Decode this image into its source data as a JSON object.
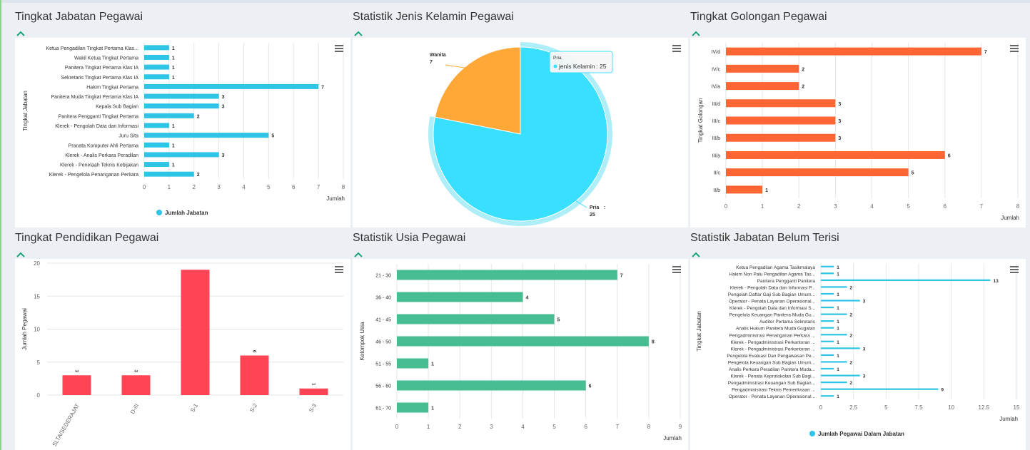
{
  "panels": {
    "p1": {
      "title": "Tingkat Jabatan Pegawai"
    },
    "p2": {
      "title": "Statistik Jenis Kelamin Pegawai"
    },
    "p3": {
      "title": "Tingkat Golongan Pegawai"
    },
    "p4": {
      "title": "Tingkat Pendidikan Pegawai"
    },
    "p5": {
      "title": "Statistik Usia Pegawai"
    },
    "p6": {
      "title": "Statistik Jabatan Belum Terisi"
    }
  },
  "colors": {
    "cyan": "#2ec4e6",
    "orange": "#ff6633",
    "red": "#ff4455",
    "green": "#47bd91",
    "pie_orange": "#ffa737",
    "pie_cyan": "#38dfff"
  },
  "chart_data": [
    {
      "id": "jabatan",
      "type": "bar",
      "orientation": "horizontal",
      "categories": [
        "Ketua Pengadilan Tingkat Pertama Klas...",
        "Wakil Ketua Tingkat Pertama",
        "Panitera Tingkat Pertama Klas IA",
        "Sekretaris Tingkat Pertama Klas IA",
        "Hakim Tingkat Pertama",
        "Panitera Muda Tingkat Pertama Klas IA",
        "Kepala Sub Bagian",
        "Panitera Pengganti Tingkat Pertama",
        "Klerek - Pengolah Data dan Informasi",
        "Juru Sita",
        "Pranata Komputer Ahli Pertama",
        "Klerek - Analis Perkara Peradilan",
        "Klerek - Penelaah Teknis Kebijakan",
        "Klerek - Pengelola Penanganan Perkara"
      ],
      "values": [
        1,
        1,
        1,
        1,
        7,
        3,
        3,
        2,
        1,
        5,
        1,
        3,
        1,
        2
      ],
      "xlabel": "Jumlah",
      "ylabel": "Tingkat Jabatan",
      "xlim": [
        0,
        8
      ],
      "ticks": [
        "0",
        "1",
        "2",
        "3",
        "4",
        "5",
        "6",
        "7",
        "8"
      ],
      "legend": "Jumlah Jabatan"
    },
    {
      "id": "kelamin",
      "type": "pie",
      "slices": [
        {
          "label": "Wanita",
          "value": 7
        },
        {
          "label": "Pria",
          "value": 25
        }
      ],
      "tooltip": {
        "title": "Pria",
        "series": "jenis Kelamin",
        "value": "25"
      }
    },
    {
      "id": "golongan",
      "type": "bar",
      "orientation": "horizontal",
      "categories": [
        "IV/d",
        "IV/c",
        "IV/a",
        "III/d",
        "III/c",
        "III/b",
        "III/a",
        "II/c",
        "II/b"
      ],
      "values": [
        7,
        2,
        2,
        3,
        3,
        3,
        6,
        5,
        1
      ],
      "xlabel": "Jumlah",
      "ylabel": "Tingkat Golongan",
      "xlim": [
        0,
        8
      ],
      "ticks": [
        "0",
        "1",
        "2",
        "3",
        "4",
        "5",
        "6",
        "7",
        "8"
      ]
    },
    {
      "id": "pendidikan",
      "type": "bar",
      "orientation": "vertical",
      "categories": [
        "SLTA/SEDERAJAT",
        "D-III",
        "S-1",
        "S-2",
        "S-3"
      ],
      "values": [
        3,
        3,
        19,
        6,
        1
      ],
      "data_labels": [
        "3",
        "3",
        "",
        "6",
        "1"
      ],
      "ylabel": "Jumlah Pegawai",
      "ylim": [
        0,
        20
      ],
      "ticks": [
        "0",
        "5",
        "10",
        "15",
        "20"
      ]
    },
    {
      "id": "usia",
      "type": "bar",
      "orientation": "horizontal",
      "categories": [
        "21 - 30",
        "36 - 40",
        "41 - 45",
        "46 - 50",
        "51 - 55",
        "56 - 60",
        "61 - 70"
      ],
      "values": [
        7,
        4,
        5,
        8,
        1,
        6,
        1
      ],
      "xlabel": "Jumlah",
      "ylabel": "Kelompok Usia",
      "xlim": [
        0,
        9
      ],
      "ticks": [
        "0",
        "1",
        "2",
        "3",
        "4",
        "5",
        "6",
        "7",
        "8",
        "9"
      ]
    },
    {
      "id": "belum",
      "type": "bar",
      "orientation": "horizontal",
      "categories": [
        "Ketua Pengadilan Agama Tasikmalaya",
        "Hakim Non Palu Pengadilan Agama Tas...",
        "Panitera Pengganti Panitera",
        "Klerek - Pengolah Data dan Informasi P...",
        "Pengolah Daftar Gaji Sub Bagian Umum...",
        "Operator - Penata Layanan Operasional...",
        "Klerek - Pengolah Data dan Informasi S...",
        "Pengelola Keuangan Panitera Muda Gu...",
        "Auditor Pertama Sekretaris",
        "Analis Hukum Panitera Muda Gugatan",
        "Pengadministrasi Penanganan Perkara ...",
        "Klerek - Pengadministrasi Perkantoran ...",
        "Klerek - Pengadministrasi Perkantoran ...",
        "Pengelola Evaluasi Dan Pengawasan Pe...",
        "Pengelola Keuangan Sub Bagian Umum...",
        "Analis Perkara Peradilan Panitera Muda...",
        "Klerek - Penata Keprotokolan Sub Bagi...",
        "Pengadministrasi Keuangan Sub Bagian...",
        "Pengadministrasi Teknis Pemeriksaan ...",
        "Operator - Penata Layanan Operasional..."
      ],
      "values": [
        1,
        1,
        13,
        2,
        1,
        3,
        1,
        2,
        1,
        1,
        2,
        1,
        3,
        1,
        2,
        1,
        3,
        2,
        9,
        1
      ],
      "xlabel": "Jumlah",
      "ylabel": "Tingkat Jabatan",
      "xlim": [
        0,
        15
      ],
      "ticks": [
        "0",
        "2.5",
        "5",
        "7.5",
        "10",
        "12.5",
        "15"
      ],
      "legend": "Jumlah Pegawai Dalam Jabatan"
    }
  ]
}
